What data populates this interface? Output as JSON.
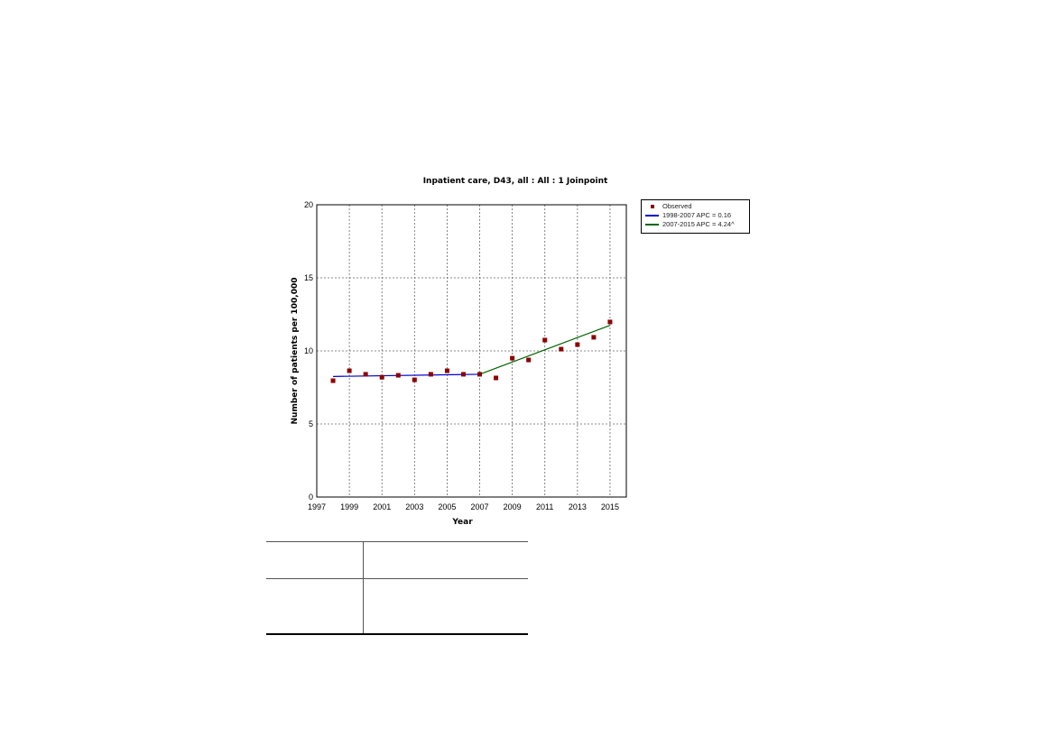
{
  "chart_data": {
    "type": "scatter",
    "title": "Inpatient care, D43, all : All : 1 Joinpoint",
    "xlabel": "Year",
    "ylabel": "Number of patients per 100,000",
    "xlim": [
      1997,
      2016
    ],
    "ylim": [
      0,
      20
    ],
    "xticks": [
      1997,
      1999,
      2001,
      2003,
      2005,
      2007,
      2009,
      2011,
      2013,
      2015
    ],
    "yticks": [
      0,
      5,
      10,
      15,
      20
    ],
    "grid": true,
    "legend_position": "right",
    "series": [
      {
        "name": "Observed",
        "type": "scatter",
        "color": "#8b0000",
        "x": [
          1998,
          1999,
          2000,
          2001,
          2002,
          2003,
          2004,
          2005,
          2006,
          2007,
          2008,
          2009,
          2010,
          2011,
          2012,
          2013,
          2014,
          2015
        ],
        "y": [
          7.96,
          8.64,
          8.4,
          8.2,
          8.33,
          8.02,
          8.4,
          8.64,
          8.4,
          8.4,
          8.15,
          9.5,
          9.38,
          10.74,
          10.12,
          10.43,
          10.93,
          11.98
        ]
      },
      {
        "name": "1998-2007 APC = 0.16",
        "type": "line",
        "color": "#0000cc",
        "x": [
          1998,
          2007
        ],
        "y": [
          8.25,
          8.4
        ]
      },
      {
        "name": "2007-2015 APC = 4.24^",
        "type": "line",
        "color": "#006400",
        "x": [
          2007,
          2015
        ],
        "y": [
          8.4,
          11.75
        ]
      }
    ]
  }
}
